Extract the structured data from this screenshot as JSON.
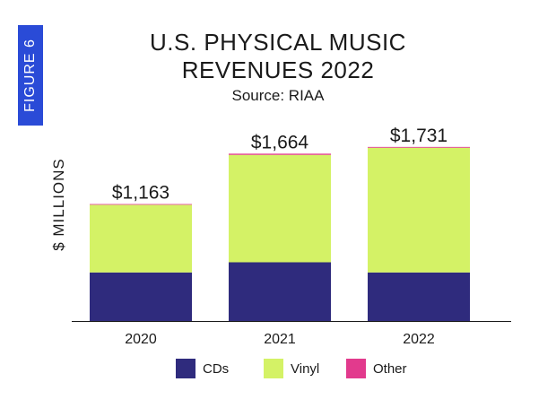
{
  "figure_label": "FIGURE 6",
  "chart_data": {
    "type": "bar",
    "stacked": true,
    "title_line1": "U.S. PHYSICAL MUSIC",
    "title_line2": "REVENUES 2022",
    "subtitle": "Source: RIAA",
    "ylabel": "$ MILLIONS",
    "xlabel": "",
    "categories": [
      "2020",
      "2021",
      "2022"
    ],
    "series": [
      {
        "name": "CDs",
        "color": "#2f2b7d",
        "values": [
          483,
          584,
          483
        ]
      },
      {
        "name": "Vinyl",
        "color": "#d4f266",
        "values": [
          673,
          1068,
          1240
        ]
      },
      {
        "name": "Other",
        "color": "#e23a8d",
        "values": [
          7,
          12,
          8
        ]
      }
    ],
    "totals": [
      1163,
      1664,
      1731
    ],
    "total_labels": [
      "$1,163",
      "$1,664",
      "$1,731"
    ],
    "ylim": [
      0,
      1810
    ],
    "grid": false,
    "legend_position": "bottom"
  }
}
